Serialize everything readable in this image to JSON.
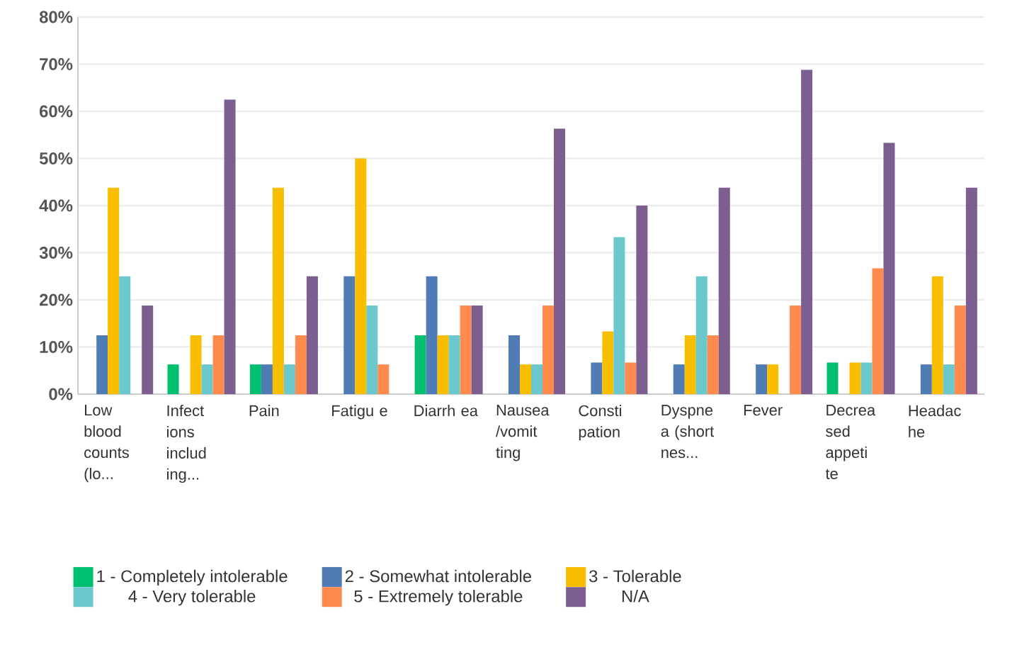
{
  "chart_data": {
    "type": "bar",
    "categories": [
      "Low blood counts (lo...",
      "Infect ions includ ing...",
      "Pain",
      "Fatigu e",
      "Diarrh ea",
      "Nausea /vomit ting",
      "Consti pation",
      "Dyspne a (short nes...",
      "Fever",
      "Decrea sed appeti te",
      "Headac he"
    ],
    "series": [
      {
        "name": "1 - Completely intolerable",
        "color": "#00bf6f",
        "values": [
          0,
          6.3,
          6.3,
          0,
          12.5,
          0,
          0,
          0,
          0,
          6.7,
          0
        ]
      },
      {
        "name": "2 - Somewhat intolerable",
        "color": "#507cb6",
        "values": [
          12.5,
          0,
          6.3,
          25,
          25,
          12.5,
          6.7,
          6.3,
          6.3,
          0,
          6.3
        ]
      },
      {
        "name": "3 - Tolerable",
        "color": "#f9be00",
        "values": [
          43.8,
          12.5,
          43.8,
          50,
          12.5,
          6.3,
          13.3,
          12.5,
          6.3,
          6.7,
          25
        ]
      },
      {
        "name": "4 - Very tolerable",
        "color": "#6bc8cd",
        "values": [
          25,
          6.3,
          6.3,
          18.8,
          12.5,
          6.3,
          33.3,
          25,
          0,
          6.7,
          6.3
        ]
      },
      {
        "name": "5 - Extremely tolerable",
        "color": "#ff8b4f",
        "values": [
          0,
          12.5,
          12.5,
          6.3,
          18.8,
          18.8,
          6.7,
          12.5,
          18.8,
          26.7,
          18.8
        ]
      },
      {
        "name": "N/A",
        "color": "#7d5e90",
        "values": [
          18.8,
          62.5,
          25,
          0,
          18.8,
          56.3,
          40,
          43.8,
          68.8,
          53.3,
          43.8
        ]
      }
    ],
    "ylim": [
      0,
      80
    ],
    "yticks": [
      {
        "value": 0,
        "label": "0%"
      },
      {
        "value": 10,
        "label": "10%"
      },
      {
        "value": 20,
        "label": "20%"
      },
      {
        "value": 30,
        "label": "30%"
      },
      {
        "value": 40,
        "label": "40%"
      },
      {
        "value": 50,
        "label": "50%"
      },
      {
        "value": 60,
        "label": "60%"
      },
      {
        "value": 70,
        "label": "70%"
      },
      {
        "value": 80,
        "label": "80%"
      }
    ],
    "grid": "y",
    "legend": "bottom"
  }
}
